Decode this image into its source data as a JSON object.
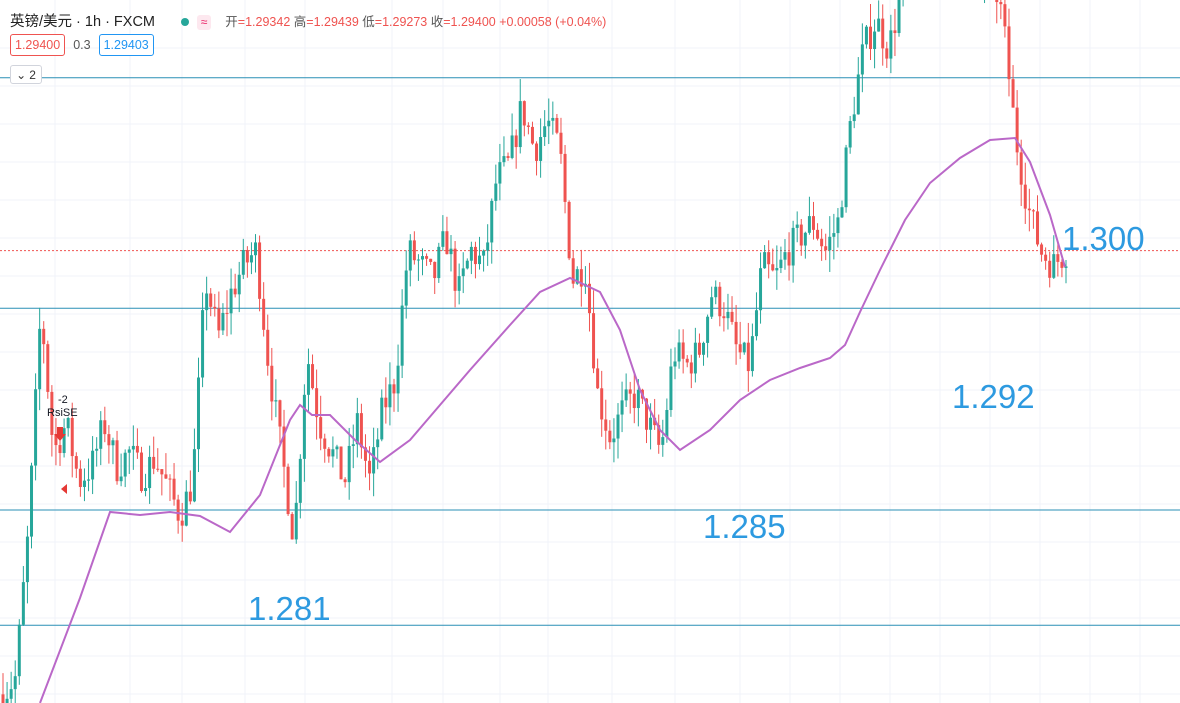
{
  "header": {
    "symbol": "英镑/美元 · 1h · FXCM",
    "open_label": "开",
    "open": "=1.29342",
    "high_label": "高",
    "high": "=1.29439",
    "low_label": "低",
    "low": "=1.29273",
    "close_label": "收",
    "close": "=1.29400",
    "change": "+0.00058 (+0.04%)"
  },
  "trade": {
    "sell_price": "1.29400",
    "spread": "0.3",
    "buy_price": "1.29403"
  },
  "indicator_toggle": {
    "count": "2"
  },
  "colors": {
    "up": "#26a69a",
    "down": "#ef5350",
    "ma": "#ba68c8",
    "level_line": "#2a8fb5",
    "level_text": "#2d9ae0",
    "price_line": "#ef5350",
    "grid": "#f0f3fa"
  },
  "chart_data": {
    "type": "candlestick",
    "interval": "1h",
    "ylim": [
      1.2783,
      1.3027
    ],
    "price_line": 1.294,
    "horizontal_levels": [
      {
        "value": 1.3,
        "label": "1.300"
      },
      {
        "value": 1.292,
        "label": "1.292"
      },
      {
        "value": 1.285,
        "label": "1.285"
      },
      {
        "value": 1.281,
        "label": "1.281"
      }
    ],
    "signal": {
      "value": "-2",
      "text": "RsiSE"
    },
    "close_path": [
      1.2786,
      1.2792,
      1.2842,
      1.292,
      1.287,
      1.288,
      1.286,
      1.2865,
      1.288,
      1.2865,
      1.287,
      1.2862,
      1.2868,
      1.2858,
      1.2848,
      1.286,
      1.293,
      1.291,
      1.2925,
      1.2935,
      1.294,
      1.29,
      1.287,
      1.284,
      1.2905,
      1.288,
      1.287,
      1.286,
      1.288,
      1.286,
      1.2885,
      1.2895,
      1.294,
      1.2935,
      1.293,
      1.2945,
      1.2925,
      1.294,
      1.2935,
      1.2965,
      1.297,
      1.299,
      1.2975,
      1.2985,
      1.2975,
      1.293,
      1.2935,
      1.289,
      1.2875,
      1.2885,
      1.289,
      1.288,
      1.287,
      1.2905,
      1.29,
      1.2905,
      1.2925,
      1.292,
      1.2905,
      1.29,
      1.2935,
      1.293,
      1.294,
      1.2945,
      1.295,
      1.294,
      1.295,
      1.2985,
      1.301,
      1.302,
      1.301,
      1.303,
      1.304,
      1.305,
      1.306,
      1.3045,
      1.304,
      1.303,
      1.304,
      1.302,
      1.298,
      1.2955,
      1.294,
      1.2935,
      1.294
    ],
    "moving_average": [
      [
        40,
        703
      ],
      [
        80,
        598
      ],
      [
        110,
        512
      ],
      [
        140,
        515
      ],
      [
        170,
        512
      ],
      [
        200,
        516
      ],
      [
        230,
        532
      ],
      [
        260,
        495
      ],
      [
        290,
        420
      ],
      [
        300,
        405
      ],
      [
        312,
        415
      ],
      [
        330,
        415
      ],
      [
        355,
        440
      ],
      [
        380,
        462
      ],
      [
        410,
        440
      ],
      [
        440,
        405
      ],
      [
        470,
        370
      ],
      [
        510,
        325
      ],
      [
        540,
        292
      ],
      [
        570,
        278
      ],
      [
        600,
        292
      ],
      [
        620,
        330
      ],
      [
        640,
        390
      ],
      [
        660,
        430
      ],
      [
        680,
        450
      ],
      [
        710,
        430
      ],
      [
        740,
        400
      ],
      [
        770,
        380
      ],
      [
        800,
        368
      ],
      [
        830,
        358
      ],
      [
        845,
        345
      ],
      [
        860,
        312
      ],
      [
        880,
        270
      ],
      [
        905,
        220
      ],
      [
        930,
        183
      ],
      [
        960,
        158
      ],
      [
        990,
        140
      ],
      [
        1015,
        138
      ],
      [
        1030,
        162
      ],
      [
        1050,
        215
      ],
      [
        1065,
        267
      ]
    ]
  }
}
